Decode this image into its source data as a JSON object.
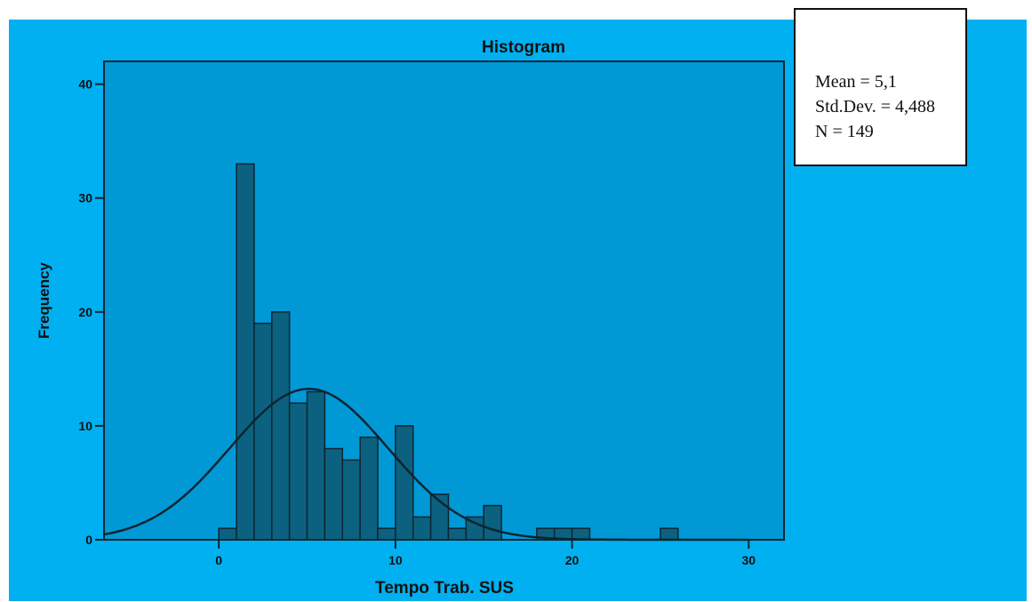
{
  "chart_data": {
    "type": "bar",
    "title": "Histogram",
    "xlabel": "Tempo Trab. SUS",
    "ylabel": "Frequency",
    "xlim": [
      -6.5,
      32
    ],
    "ylim": [
      0,
      42
    ],
    "x_ticks": [
      0,
      10,
      20,
      30
    ],
    "y_ticks": [
      0,
      10,
      20,
      30,
      40
    ],
    "bin_width": 1,
    "bins": [
      {
        "x": 0,
        "count": 1
      },
      {
        "x": 1,
        "count": 33
      },
      {
        "x": 2,
        "count": 19
      },
      {
        "x": 3,
        "count": 20
      },
      {
        "x": 4,
        "count": 12
      },
      {
        "x": 5,
        "count": 13
      },
      {
        "x": 6,
        "count": 8
      },
      {
        "x": 7,
        "count": 7
      },
      {
        "x": 8,
        "count": 9
      },
      {
        "x": 9,
        "count": 1
      },
      {
        "x": 10,
        "count": 10
      },
      {
        "x": 11,
        "count": 2
      },
      {
        "x": 12,
        "count": 4
      },
      {
        "x": 13,
        "count": 1
      },
      {
        "x": 14,
        "count": 2
      },
      {
        "x": 15,
        "count": 3
      },
      {
        "x": 18,
        "count": 1
      },
      {
        "x": 19,
        "count": 1
      },
      {
        "x": 20,
        "count": 1
      },
      {
        "x": 25,
        "count": 1
      }
    ],
    "normal_curve": {
      "mean": 5.1,
      "std": 4.488,
      "n": 149
    },
    "grid": false,
    "colors": {
      "background": "#00b0f0",
      "plot_area": "#0099d6",
      "bar_fill": "#0c6180",
      "stroke": "#0d2530"
    }
  },
  "stats": {
    "mean_text": "Mean = 5,1",
    "std_text": "Std.Dev. = 4,488",
    "n_text": "N = 149"
  }
}
